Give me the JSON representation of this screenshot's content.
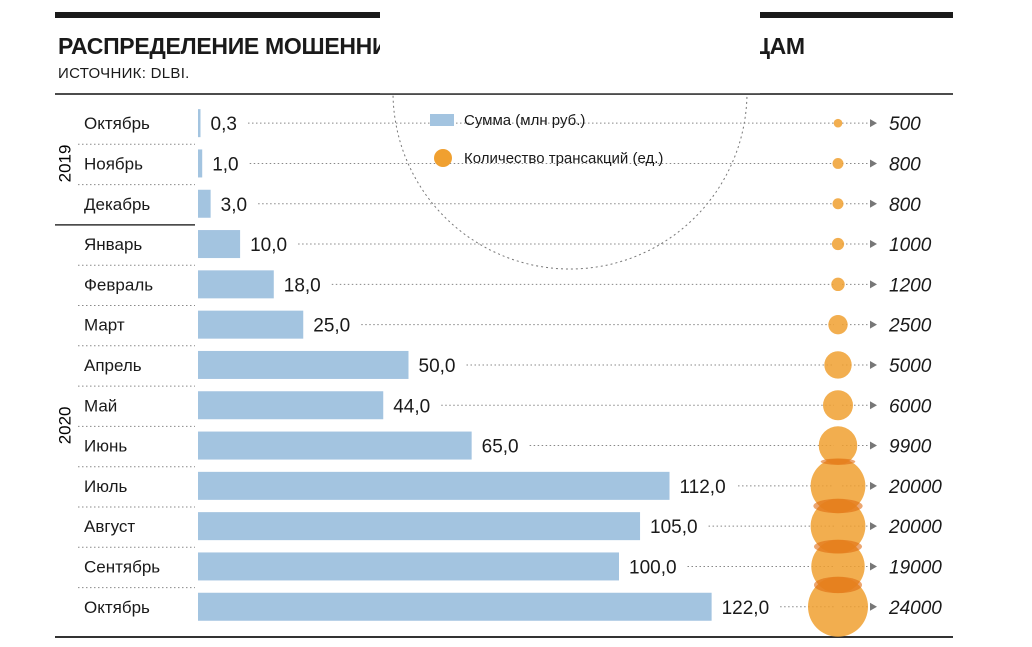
{
  "header": {
    "title": "РАСПРЕДЕЛЕНИЕ МОШЕННИЧЕСКИХ ТРАНСАКЦИЙ ПО МЕСЯЦАМ",
    "source": "ИСТОЧНИК: DLBI."
  },
  "chart_data": {
    "type": "bar",
    "orientation": "horizontal",
    "categories": [
      "Октябрь",
      "Ноябрь",
      "Декабрь",
      "Январь",
      "Февраль",
      "Март",
      "Апрель",
      "Май",
      "Июнь",
      "Июль",
      "Август",
      "Сентябрь",
      "Октябрь"
    ],
    "year_groups": [
      {
        "label": "2019",
        "start": 0,
        "end": 2
      },
      {
        "label": "2020",
        "start": 3,
        "end": 12
      }
    ],
    "series": [
      {
        "name": "Сумма (млн руб.)",
        "kind": "bar",
        "values": [
          0.3,
          1.0,
          3.0,
          10.0,
          18.0,
          25.0,
          50.0,
          44.0,
          65.0,
          112.0,
          105.0,
          100.0,
          122.0
        ],
        "labels": [
          "0,3",
          "1,0",
          "3,0",
          "10,0",
          "18,0",
          "25,0",
          "50,0",
          "44,0",
          "65,0",
          "112,0",
          "105,0",
          "100,0",
          "122,0"
        ]
      },
      {
        "name": "Количество трансакций (ед.)",
        "kind": "bubble",
        "values": [
          500,
          800,
          800,
          1000,
          1200,
          2500,
          5000,
          6000,
          9900,
          20000,
          20000,
          19000,
          24000
        ],
        "labels": [
          "500",
          "800",
          "800",
          "1000",
          "1200",
          "2500",
          "5000",
          "6000",
          "9900",
          "20000",
          "20000",
          "19000",
          "24000"
        ]
      }
    ],
    "legend_position": "top-center",
    "colors": {
      "bar": "#a3c4e0",
      "bubble": "#f0a030",
      "bubble_overlap": "#e06a10",
      "text": "#1a1a1a",
      "rule": "#333333"
    }
  }
}
